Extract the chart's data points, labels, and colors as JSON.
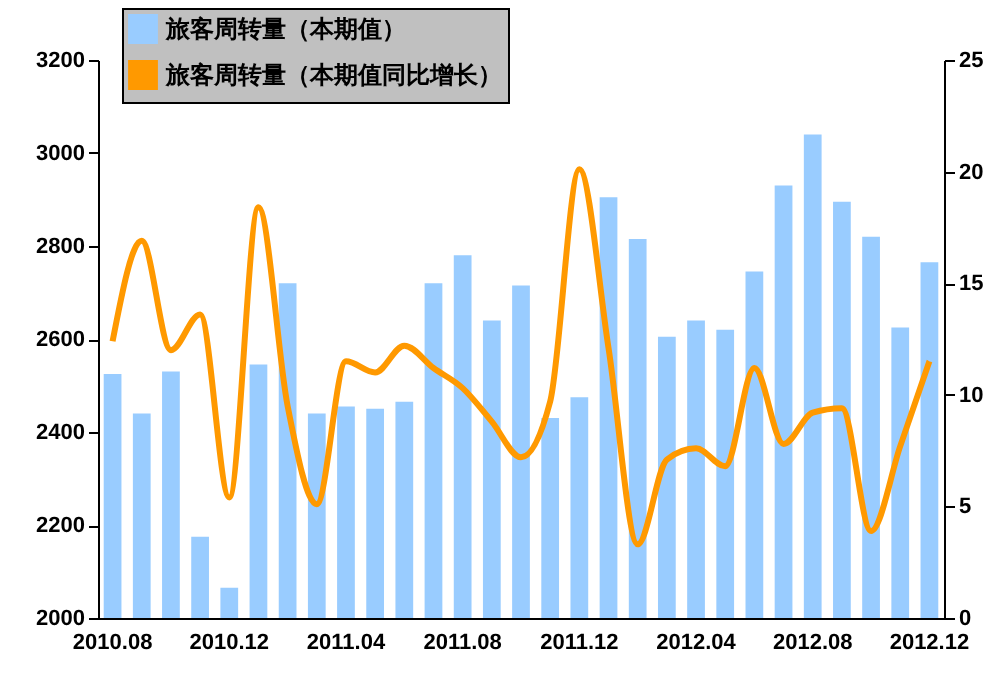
{
  "chart_data": {
    "type": "bar",
    "categories": [
      "2010.08",
      null,
      null,
      null,
      "2010.12",
      null,
      null,
      null,
      "2011.04",
      null,
      null,
      null,
      "2011.08",
      null,
      null,
      null,
      "2011.12",
      null,
      null,
      null,
      "2012.04",
      null,
      null,
      null,
      "2012.08",
      null,
      null,
      null,
      "2012.12"
    ],
    "series": [
      {
        "name": "旅客周转量（本期值）",
        "color": "#99ccff",
        "values": [
          2525,
          2440,
          2530,
          2175,
          2065,
          2545,
          2720,
          2440,
          2455,
          2450,
          2465,
          2720,
          2780,
          2640,
          2715,
          2430,
          2475,
          2905,
          2815,
          2605,
          2640,
          2620,
          2745,
          2930,
          3040,
          2895,
          2820,
          2625,
          2765
        ]
      },
      {
        "name": "旅客周转量（本期值同比增长）",
        "type": "line",
        "axis": "y2",
        "color": "#ff9900",
        "values": [
          12.4,
          16.9,
          12.0,
          13.6,
          5.4,
          18.4,
          9.5,
          5.1,
          11.5,
          11.0,
          12.2,
          11.2,
          10.3,
          8.8,
          7.2,
          9.7,
          20.1,
          12.1,
          3.3,
          7.1,
          7.6,
          6.8,
          11.2,
          7.8,
          9.2,
          9.4,
          3.9,
          7.7,
          11.5
        ]
      }
    ],
    "ylim": [
      2000,
      3200
    ],
    "yticks": [
      2000,
      2200,
      2400,
      2600,
      2800,
      3000,
      3200
    ],
    "y2lim": [
      0,
      25
    ],
    "y2ticks": [
      0,
      5,
      10,
      15,
      20,
      25
    ],
    "legend": "top left",
    "grid": false,
    "marker": "none",
    "line_style": "solid"
  }
}
